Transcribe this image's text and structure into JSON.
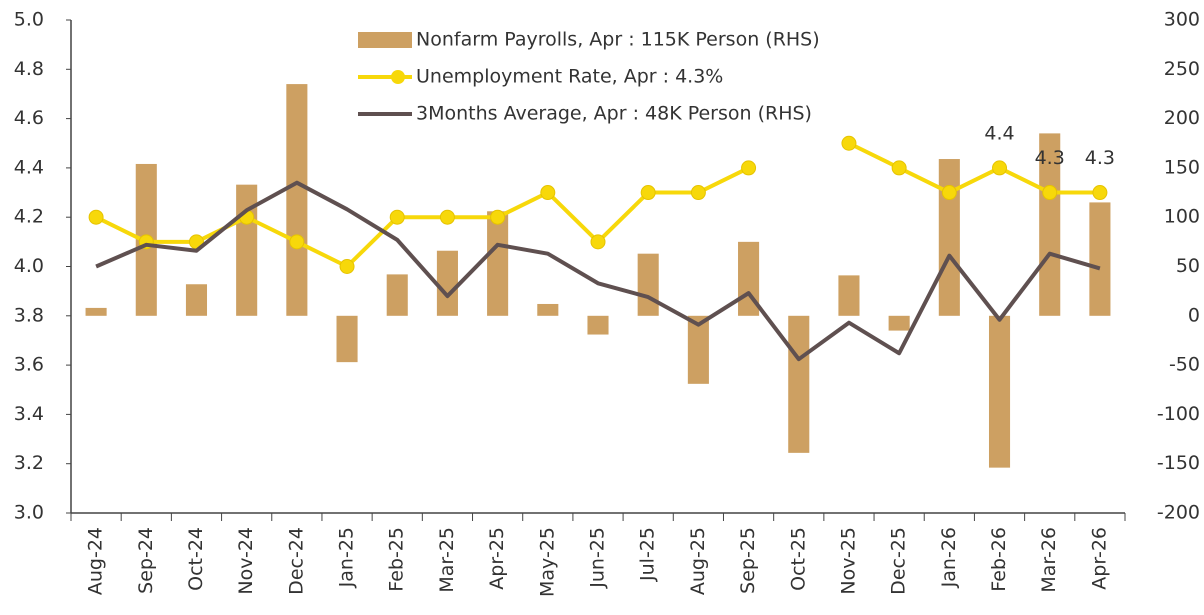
{
  "chart_data": {
    "type": "bar-line",
    "categories": [
      "Aug-24",
      "Sep-24",
      "Oct-24",
      "Nov-24",
      "Dec-24",
      "Jan-25",
      "Feb-25",
      "Mar-25",
      "Apr-25",
      "May-25",
      "Jun-25",
      "Jul-25",
      "Aug-25",
      "Sep-25",
      "Oct-25",
      "Nov-25",
      "Dec-25",
      "Jan-26",
      "Feb-26",
      "Mar-26",
      "Apr-26"
    ],
    "series": [
      {
        "name": "Nonfarm Payrolls, Apr : 115K Person (RHS)",
        "type": "bar",
        "axis": "y2",
        "color": "#cda062",
        "values": [
          8,
          154,
          32,
          133,
          235,
          -47,
          42,
          66,
          106,
          12,
          -19,
          63,
          -69,
          75,
          -139,
          41,
          -15,
          159,
          -154,
          185,
          115
        ]
      },
      {
        "name": "Unemployment Rate, Apr :  4.3%",
        "type": "line",
        "color": "#f7d80a",
        "marker": "circle",
        "values": [
          4.2,
          4.1,
          4.1,
          4.2,
          4.1,
          4.0,
          4.2,
          4.2,
          4.2,
          4.3,
          4.1,
          4.3,
          4.3,
          4.4,
          null,
          4.5,
          4.4,
          4.3,
          4.4,
          4.3,
          4.3
        ],
        "value_labels": [
          null,
          null,
          null,
          null,
          null,
          null,
          null,
          null,
          null,
          null,
          null,
          null,
          null,
          null,
          null,
          null,
          null,
          null,
          "4.4",
          "4.3",
          "4.3"
        ]
      },
      {
        "name": "3Months Average, Apr : 48K Person (RHS)",
        "type": "line",
        "axis": "y2",
        "color": "#5f5050",
        "values": [
          50,
          72,
          66,
          107,
          135,
          108,
          77,
          20,
          72,
          63,
          33,
          19,
          -9,
          23,
          -44,
          -7,
          -38,
          61,
          -4,
          63,
          48
        ]
      }
    ],
    "ylim": [
      3.0,
      5.0
    ],
    "yticks": [
      {
        "value": 3.0,
        "label": "3.0"
      },
      3.2,
      3.4,
      3.6,
      3.8,
      {
        "value": 4.0,
        "label": "4.0"
      },
      4.2,
      4.4,
      4.6,
      4.8,
      {
        "value": 5.0,
        "label": "5.0"
      }
    ],
    "y2lim": [
      -200,
      300
    ],
    "y2ticks": [
      -200,
      -150,
      -100,
      -50,
      0,
      50,
      100,
      150,
      200,
      250,
      300
    ],
    "grid": false,
    "legend": "top"
  }
}
